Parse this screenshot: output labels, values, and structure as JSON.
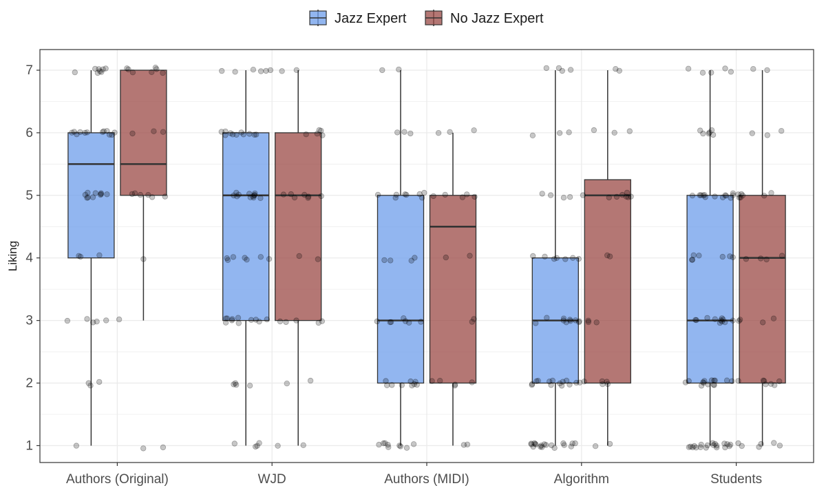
{
  "chart_data": {
    "type": "boxplot",
    "title": "",
    "xlabel": "",
    "ylabel": "Liking",
    "ylim": [
      0.73,
      7.33
    ],
    "yticks": [
      1,
      2,
      3,
      4,
      5,
      6,
      7
    ],
    "categories": [
      "Authors (Original)",
      "WJD",
      "Authors (MIDI)",
      "Algorithm",
      "Students"
    ],
    "legend": {
      "position": "top"
    },
    "series": [
      {
        "name": "Jazz Expert",
        "color": "#6d9eeb",
        "boxes": [
          {
            "min": 1,
            "q1": 4,
            "median": 5.5,
            "q3": 6,
            "max": 7,
            "points": [
              7,
              7,
              7,
              7,
              7,
              7,
              7,
              7,
              6,
              6,
              6,
              6,
              6,
              6,
              6,
              6,
              6,
              6,
              6,
              6,
              5,
              5,
              5,
              5,
              5,
              5,
              5,
              5,
              5,
              5,
              4,
              4,
              4,
              3,
              3,
              3,
              3,
              3,
              2,
              2,
              2,
              1
            ]
          },
          {
            "min": 1,
            "q1": 3,
            "median": 5,
            "q3": 6,
            "max": 7,
            "points": [
              7,
              7,
              7,
              7,
              7,
              7,
              6,
              6,
              6,
              6,
              6,
              6,
              6,
              6,
              6,
              6,
              6,
              5,
              5,
              5,
              5,
              5,
              5,
              5,
              5,
              5,
              5,
              5,
              5,
              4,
              4,
              4,
              4,
              4,
              4,
              4,
              3,
              3,
              3,
              3,
              3,
              3,
              3,
              3,
              3,
              3,
              3,
              2,
              2,
              2,
              2,
              1,
              1,
              1,
              1
            ]
          },
          {
            "min": 1,
            "q1": 2,
            "median": 3,
            "q3": 5,
            "max": 7,
            "points": [
              7,
              7,
              6,
              6,
              6,
              5,
              5,
              5,
              5,
              5,
              5,
              5,
              5,
              4,
              4,
              4,
              4,
              3,
              3,
              3,
              3,
              3,
              3,
              3,
              2,
              2,
              2,
              2,
              2,
              2,
              2,
              2,
              2,
              1,
              1,
              1,
              1,
              1,
              1,
              1,
              1,
              1
            ]
          },
          {
            "min": 1,
            "q1": 2,
            "median": 3,
            "q3": 4,
            "max": 7,
            "points": [
              7,
              7,
              7,
              7,
              6,
              6,
              6,
              5,
              5,
              5,
              5,
              4,
              4,
              4,
              4,
              4,
              4,
              4,
              3,
              3,
              3,
              3,
              3,
              3,
              3,
              3,
              3,
              3,
              2,
              2,
              2,
              2,
              2,
              2,
              2,
              2,
              2,
              2,
              2,
              2,
              2,
              2,
              1,
              1,
              1,
              1,
              1,
              1,
              1,
              1,
              1,
              1,
              1,
              1,
              1,
              1,
              1,
              1,
              1,
              1
            ]
          },
          {
            "min": 1,
            "q1": 2,
            "median": 3,
            "q3": 5,
            "max": 7,
            "points": [
              7,
              7,
              7,
              7,
              7,
              6,
              6,
              6,
              6,
              6,
              6,
              5,
              5,
              5,
              5,
              5,
              5,
              5,
              5,
              5,
              5,
              5,
              5,
              5,
              4,
              4,
              4,
              4,
              4,
              4,
              4,
              3,
              3,
              3,
              3,
              3,
              3,
              3,
              3,
              3,
              3,
              3,
              2,
              2,
              2,
              2,
              2,
              2,
              2,
              2,
              2,
              2,
              2,
              2,
              2,
              2,
              1,
              1,
              1,
              1,
              1,
              1,
              1,
              1,
              1,
              1,
              1,
              1,
              1,
              1,
              1,
              1,
              1,
              1,
              1
            ]
          }
        ]
      },
      {
        "name": "No Jazz Expert",
        "color": "#9b4a46",
        "boxes": [
          {
            "min": 3,
            "q1": 5,
            "median": 5.5,
            "q3": 7,
            "max": 7,
            "points": [
              7,
              7,
              7,
              7,
              7,
              7,
              7,
              6,
              6,
              6,
              5,
              5,
              5,
              5,
              5,
              5,
              4,
              3,
              1,
              1
            ]
          },
          {
            "min": 1,
            "q1": 3,
            "median": 5,
            "q3": 6,
            "max": 7,
            "points": [
              7,
              7,
              6,
              6,
              6,
              6,
              6,
              5,
              5,
              5,
              5,
              5,
              5,
              5,
              4,
              4,
              3,
              3,
              3,
              3,
              3,
              2,
              2,
              1,
              1
            ]
          },
          {
            "min": 1,
            "q1": 2,
            "median": 4.5,
            "q3": 5,
            "max": 6,
            "points": [
              6,
              6,
              6,
              5,
              5,
              5,
              5,
              5,
              4,
              4,
              3,
              3,
              2,
              2,
              2,
              2,
              2,
              1,
              1
            ]
          },
          {
            "min": 1,
            "q1": 2,
            "median": 5,
            "q3": 5.25,
            "max": 7,
            "points": [
              7,
              7,
              6,
              6,
              6,
              5,
              5,
              5,
              5,
              5,
              5,
              5,
              5,
              4,
              4,
              3,
              3,
              3,
              2,
              2,
              2,
              2,
              2,
              1,
              1
            ]
          },
          {
            "min": 1,
            "q1": 2,
            "median": 4,
            "q3": 5,
            "max": 7,
            "points": [
              7,
              7,
              6,
              6,
              6,
              5,
              5,
              5,
              5,
              5,
              5,
              5,
              4,
              4,
              4,
              4,
              3,
              3,
              3,
              3,
              2,
              2,
              2,
              2,
              2,
              2,
              2,
              1,
              1,
              1,
              1,
              1,
              1
            ]
          }
        ]
      }
    ]
  }
}
